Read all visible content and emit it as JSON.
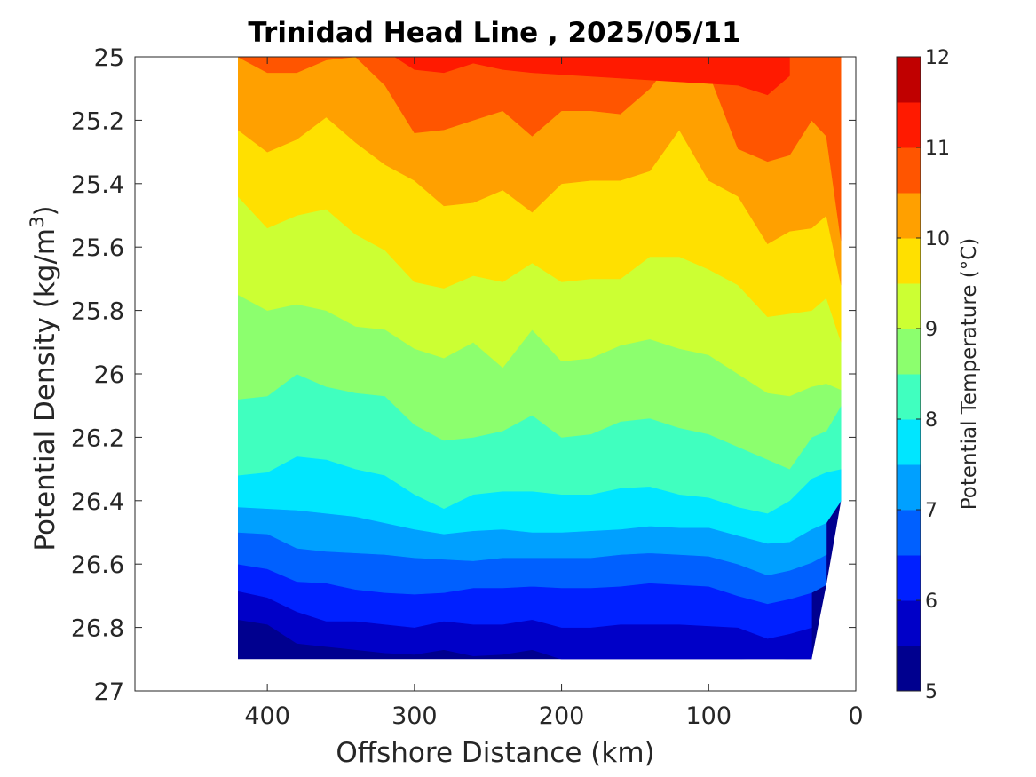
{
  "chart_data": {
    "type": "contour",
    "title": "Trinidad Head Line , 2025/05/11",
    "xlabel": "Offshore Distance (km)",
    "ylabel": "Potential Density (kg/m",
    "ylabel_superscript": "3",
    "ylabel_suffix": ")",
    "x_range_reversed": [
      490,
      0
    ],
    "y_range_inverted": [
      25,
      27
    ],
    "x_ticks": [
      400,
      300,
      200,
      100,
      0
    ],
    "x_tick_labels": [
      "400",
      "300",
      "200",
      "100",
      "0"
    ],
    "y_ticks": [
      25,
      25.2,
      25.4,
      25.6,
      25.8,
      26,
      26.2,
      26.4,
      26.6,
      26.8,
      27
    ],
    "y_tick_labels": [
      "25",
      "25.2",
      "25.4",
      "25.6",
      "25.8",
      "26",
      "26.2",
      "26.4",
      "26.6",
      "26.8",
      "27"
    ],
    "colorbar": {
      "label": "Potential Temperature (°C)",
      "min": 5,
      "max": 12,
      "ticks": [
        5,
        6,
        7,
        8,
        9,
        10,
        11,
        12
      ],
      "tick_labels": [
        "5",
        "6",
        "7",
        "8",
        "9",
        "10",
        "11",
        "12"
      ],
      "level_step": 0.5,
      "colors": [
        "#00008F",
        "#0000C8",
        "#0020FF",
        "#0060FF",
        "#00A0FF",
        "#00E6FF",
        "#40FFBF",
        "#8CFF6E",
        "#CCFF33",
        "#FFE000",
        "#FFA000",
        "#FF5500",
        "#FF1A00",
        "#C00000"
      ]
    },
    "x": [
      420,
      400,
      380,
      360,
      340,
      320,
      300,
      280,
      260,
      240,
      220,
      200,
      180,
      160,
      140,
      120,
      100,
      80,
      60,
      45,
      30,
      20,
      10
    ],
    "isopycnals": [
      {
        "temp": 5.5,
        "depth": [
          26.775,
          26.79,
          26.85,
          26.86,
          26.87,
          26.88,
          26.885,
          26.87,
          26.89,
          26.885,
          26.87,
          26.9,
          26.9,
          26.9,
          26.9,
          26.9,
          26.9,
          26.9,
          26.905,
          26.9,
          26.9,
          null,
          null
        ]
      },
      {
        "temp": 6.0,
        "depth": [
          26.685,
          26.705,
          26.75,
          26.78,
          26.78,
          26.79,
          26.8,
          26.78,
          26.79,
          26.79,
          26.775,
          26.8,
          26.8,
          26.79,
          26.79,
          26.79,
          26.795,
          26.8,
          26.835,
          26.82,
          26.8,
          null,
          null
        ]
      },
      {
        "temp": 6.5,
        "depth": [
          26.6,
          26.615,
          26.655,
          26.66,
          26.68,
          26.69,
          26.695,
          26.69,
          26.675,
          26.675,
          26.67,
          26.675,
          26.675,
          26.67,
          26.66,
          26.665,
          26.67,
          26.7,
          26.725,
          26.71,
          26.69,
          26.665,
          null
        ]
      },
      {
        "temp": 7.0,
        "depth": [
          26.5,
          26.505,
          26.55,
          26.56,
          26.565,
          26.57,
          26.58,
          26.585,
          26.59,
          26.58,
          26.58,
          26.58,
          26.58,
          26.57,
          26.565,
          26.57,
          26.575,
          26.6,
          26.635,
          26.62,
          26.595,
          26.57,
          null
        ]
      },
      {
        "temp": 7.5,
        "depth": [
          26.42,
          26.425,
          26.43,
          26.44,
          26.45,
          26.47,
          26.49,
          26.505,
          26.495,
          26.49,
          26.5,
          26.5,
          26.495,
          26.49,
          26.48,
          26.485,
          26.485,
          26.51,
          26.535,
          26.53,
          26.49,
          26.47,
          26.4
        ]
      },
      {
        "temp": 8.0,
        "depth": [
          26.32,
          26.31,
          26.26,
          26.27,
          26.3,
          26.32,
          26.38,
          26.425,
          26.38,
          26.37,
          26.37,
          26.38,
          26.38,
          26.36,
          26.355,
          26.38,
          26.39,
          26.42,
          26.44,
          26.4,
          26.33,
          26.31,
          26.3
        ]
      },
      {
        "temp": 8.5,
        "depth": [
          26.08,
          26.07,
          26.0,
          26.04,
          26.06,
          26.07,
          26.16,
          26.21,
          26.2,
          26.18,
          26.13,
          26.2,
          26.19,
          26.15,
          26.14,
          26.17,
          26.19,
          26.23,
          26.27,
          26.3,
          26.2,
          26.18,
          26.1
        ]
      },
      {
        "temp": 9.0,
        "depth": [
          25.75,
          25.8,
          25.78,
          25.8,
          25.85,
          25.86,
          25.92,
          25.95,
          25.9,
          25.98,
          25.86,
          25.96,
          25.95,
          25.91,
          25.89,
          25.92,
          25.94,
          26.0,
          26.06,
          26.07,
          26.04,
          26.03,
          26.05
        ]
      },
      {
        "temp": 9.5,
        "depth": [
          25.44,
          25.54,
          25.5,
          25.48,
          25.56,
          25.61,
          25.71,
          25.73,
          25.69,
          25.71,
          25.65,
          25.71,
          25.7,
          25.7,
          25.63,
          25.63,
          25.67,
          25.72,
          25.82,
          25.81,
          25.8,
          25.76,
          25.9
        ]
      },
      {
        "temp": 10.0,
        "depth": [
          25.23,
          25.3,
          25.26,
          25.19,
          25.27,
          25.34,
          25.39,
          25.47,
          25.46,
          25.42,
          25.49,
          25.4,
          25.39,
          25.39,
          25.36,
          25.23,
          25.39,
          25.44,
          25.59,
          25.55,
          25.54,
          25.5,
          25.72
        ]
      },
      {
        "temp": 10.5,
        "depth": [
          25.0,
          25.05,
          25.05,
          25.01,
          25.0,
          25.09,
          25.24,
          25.23,
          25.2,
          25.17,
          25.25,
          25.17,
          25.17,
          25.18,
          25.1,
          24.98,
          25.05,
          25.29,
          25.33,
          25.31,
          25.2,
          25.25,
          25.58
        ]
      },
      {
        "temp": 11.0,
        "depth": [
          null,
          null,
          null,
          null,
          null,
          24.98,
          25.04,
          25.05,
          25.02,
          25.04,
          25.05,
          null,
          null,
          null,
          null,
          null,
          null,
          25.09,
          25.12,
          25.06,
          null,
          null,
          null
        ]
      }
    ],
    "data_x_extent": [
      10,
      420
    ],
    "data_y_extent": [
      25,
      26.9
    ]
  }
}
